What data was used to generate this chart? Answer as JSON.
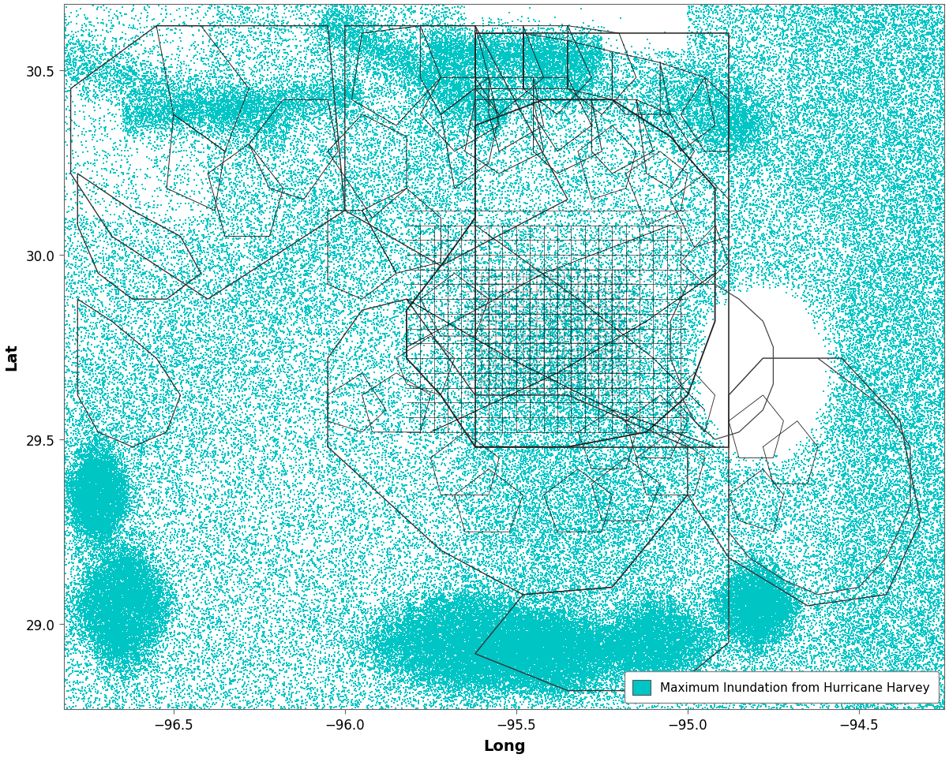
{
  "xlabel": "Long",
  "ylabel": "Lat",
  "xlim": [
    -96.82,
    -94.25
  ],
  "ylim": [
    28.77,
    30.68
  ],
  "xticks": [
    -96.5,
    -96.0,
    -95.5,
    -95.0,
    -94.5
  ],
  "yticks": [
    29.0,
    29.5,
    30.0,
    30.5
  ],
  "flood_color": "#00C5C5",
  "boundary_color": "#000000",
  "background_color": "#ffffff",
  "legend_label": "Maximum Inundation from Hurricane Harvey",
  "seed": 12345
}
